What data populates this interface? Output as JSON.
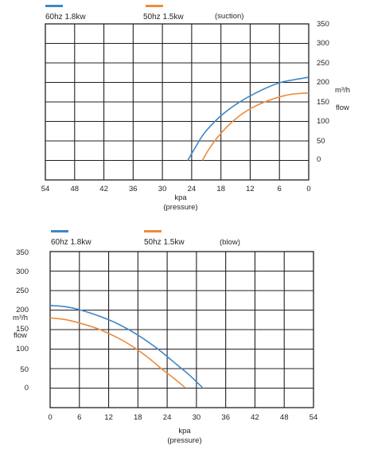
{
  "chart_data": [
    {
      "type": "line",
      "note": "(suction)",
      "xlabel": "kpa",
      "xlabel2": "(pressure)",
      "ylabel_unit": "m³/h",
      "ylabel": "flow",
      "x_ticks": [
        "54",
        "48",
        "42",
        "36",
        "30",
        "24",
        "18",
        "12",
        "6",
        "0"
      ],
      "y_ticks": [
        "350",
        "300",
        "250",
        "200",
        "150",
        "100",
        "50",
        "0"
      ],
      "xlim": [
        54,
        0
      ],
      "ylim": [
        -50,
        350
      ],
      "grid": true,
      "legend_position": "top-left",
      "series": [
        {
          "name": "60hz 1.8kw",
          "color": "#3f87c7",
          "x": [
            24.8,
            23.4,
            21.4,
            18.4,
            15.0,
            11.0,
            6.5,
            3.0,
            0
          ],
          "y": [
            0,
            30,
            70,
            110,
            143,
            172,
            197,
            207,
            213
          ]
        },
        {
          "name": "50hz 1.5kw",
          "color": "#ec8c3e",
          "x": [
            21.8,
            20.4,
            18.3,
            15.6,
            12.6,
            9.0,
            5.0,
            2.5,
            0
          ],
          "y": [
            0,
            30,
            65,
            100,
            128,
            150,
            166,
            171,
            173
          ]
        }
      ]
    },
    {
      "type": "line",
      "note": "(blow)",
      "xlabel": "kpa",
      "xlabel2": "(pressure)",
      "ylabel_unit": "m³/h",
      "ylabel": "flow",
      "x_ticks": [
        "0",
        "6",
        "12",
        "18",
        "24",
        "30",
        "36",
        "42",
        "48",
        "54"
      ],
      "y_ticks": [
        "350",
        "300",
        "250",
        "200",
        "150",
        "100",
        "50",
        "0"
      ],
      "xlim": [
        0,
        54
      ],
      "ylim": [
        -50,
        350
      ],
      "grid": true,
      "legend_position": "top-left",
      "series": [
        {
          "name": "60hz 1.8kw",
          "color": "#3f87c7",
          "x": [
            0,
            3,
            6,
            10,
            14,
            18,
            22,
            26,
            28.5,
            31.2
          ],
          "y": [
            212,
            209,
            201,
            185,
            164,
            136,
            101,
            60,
            34,
            2
          ]
        },
        {
          "name": "50hz 1.5kw",
          "color": "#ec8c3e",
          "x": [
            0,
            3,
            6,
            10,
            14,
            17,
            20,
            23,
            25.5,
            27.6
          ],
          "y": [
            180,
            176,
            167,
            151,
            128,
            106,
            79,
            48,
            24,
            2
          ]
        }
      ]
    }
  ]
}
